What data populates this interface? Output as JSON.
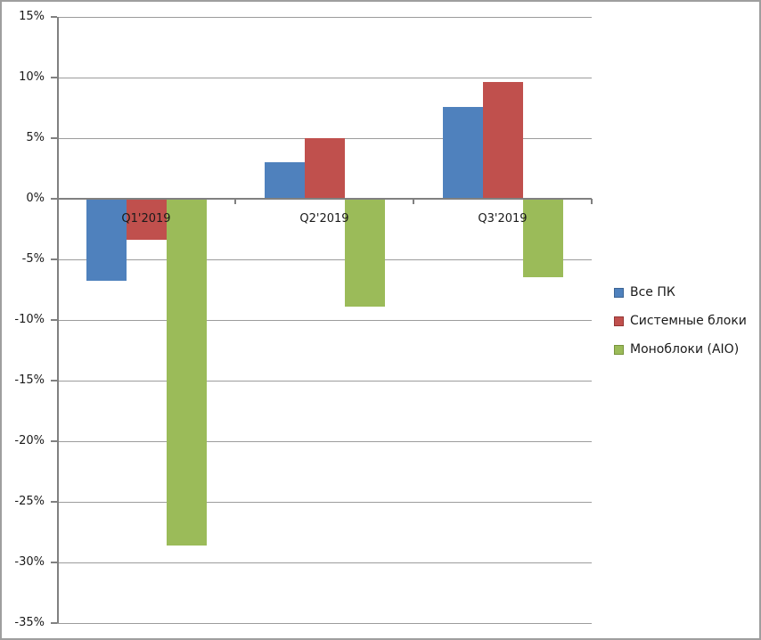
{
  "chart_data": {
    "type": "bar",
    "title": "",
    "xlabel": "",
    "ylabel": "",
    "categories": [
      "Q1'2019",
      "Q2'2019",
      "Q3'2019"
    ],
    "series": [
      {
        "name": "Все ПК",
        "color": "#4f81bd",
        "swatch_border": "#3c6494",
        "values": [
          -6.8,
          3.0,
          7.6
        ]
      },
      {
        "name": "Системные блоки",
        "color": "#c0504d",
        "swatch_border": "#943634",
        "values": [
          -3.4,
          5.0,
          9.6
        ]
      },
      {
        "name": "Моноблоки (AIO)",
        "color": "#9bbb59",
        "swatch_border": "#77943c",
        "values": [
          -28.6,
          -8.9,
          -6.5
        ]
      }
    ],
    "ylim": [
      -35,
      15
    ],
    "ytick_step": 5,
    "ytick_suffix": "%",
    "ytick_labels": [
      "15%",
      "10%",
      "5%",
      "0%",
      "-5%",
      "-10%",
      "-15%",
      "-20%",
      "-25%",
      "-30%",
      "-35%"
    ],
    "grid": true,
    "legend_position": "right-middle"
  },
  "colors": {
    "background": "#ffffff",
    "frame_border": "#9e9e9e",
    "gridline": "#9c9c9c",
    "axis": "#808080",
    "text": "#1a1a1a"
  }
}
